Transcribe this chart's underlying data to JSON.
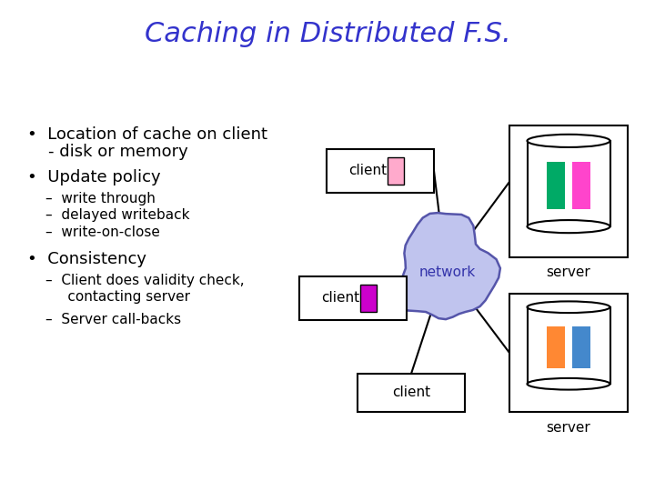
{
  "title": "Caching in Distributed F.S.",
  "title_color": "#3333cc",
  "title_fontsize": 22,
  "bg_color": "#ffffff",
  "bullet_fontsize": 13,
  "sub_bullet_fontsize": 11,
  "network_label": "network",
  "network_label_color": "#3333aa",
  "network_color": "#c0c4ee",
  "network_edge_color": "#5555aa",
  "server_label": "server",
  "client_label": "client",
  "server1_colors": [
    "#00aa66",
    "#ff44cc"
  ],
  "server2_colors": [
    "#ff8833",
    "#4488cc"
  ],
  "client1_rect_color": "#ffaacc",
  "client2_rect_color": "#cc00cc"
}
